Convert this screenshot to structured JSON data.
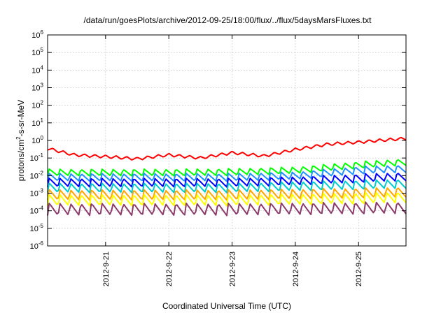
{
  "chart_data": {
    "type": "line",
    "title": "/data/run/goesPlots/archive/2012-09-25/18:00/flux/../flux/5daysMarsFluxes.txt",
    "xlabel": "Coordinated Universal Time (UTC)",
    "ylabel_parts": [
      "protons/cm",
      "2",
      "-s-sr-MeV"
    ],
    "x_range": [
      "2012-09-20T02:00",
      "2012-09-25T18:00"
    ],
    "x_ticks": [
      "2012-9-21",
      "2012-9-22",
      "2012-9-23",
      "2012-9-24",
      "2012-9-25"
    ],
    "y_scale": "log",
    "ylim": [
      1e-06,
      1000000.0
    ],
    "y_ticks": [
      {
        "base": "10",
        "exp": "6"
      },
      {
        "base": "10",
        "exp": "5"
      },
      {
        "base": "10",
        "exp": "4"
      },
      {
        "base": "10",
        "exp": "3"
      },
      {
        "base": "10",
        "exp": "2"
      },
      {
        "base": "10",
        "exp": "1"
      },
      {
        "base": "10",
        "exp": "0"
      },
      {
        "base": "10",
        "exp": "-1"
      },
      {
        "base": "10",
        "exp": "-2"
      },
      {
        "base": "10",
        "exp": "-3"
      },
      {
        "base": "10",
        "exp": "-4"
      },
      {
        "base": "10",
        "exp": "-5"
      },
      {
        "base": "10",
        "exp": "-6"
      }
    ],
    "grid": true,
    "legend": "none",
    "series": [
      {
        "color": "#ff0000",
        "x": [
          "2012-09-20T02:00",
          "2012-09-20T12:00",
          "2012-09-21T00:00",
          "2012-09-21T12:00",
          "2012-09-22T00:00",
          "2012-09-22T12:00",
          "2012-09-23T00:00",
          "2012-09-23T12:00",
          "2012-09-24T00:00",
          "2012-09-24T12:00",
          "2012-09-25T00:00",
          "2012-09-25T18:00"
        ],
        "values": [
          0.35,
          0.15,
          0.12,
          0.09,
          0.15,
          0.1,
          0.2,
          0.13,
          0.3,
          0.6,
          0.8,
          1.3
        ]
      },
      {
        "color": "#00ff00",
        "x": [
          "2012-09-20T02:00",
          "2012-09-21T00:00",
          "2012-09-22T00:00",
          "2012-09-23T00:00",
          "2012-09-24T00:00",
          "2012-09-25T00:00",
          "2012-09-25T18:00"
        ],
        "values": [
          0.015,
          0.015,
          0.015,
          0.016,
          0.02,
          0.04,
          0.06
        ]
      },
      {
        "color": "#1e90ff",
        "x": [
          "2012-09-20T02:00",
          "2012-09-21T00:00",
          "2012-09-22T00:00",
          "2012-09-23T00:00",
          "2012-09-24T00:00",
          "2012-09-25T00:00",
          "2012-09-25T18:00"
        ],
        "values": [
          0.008,
          0.008,
          0.008,
          0.008,
          0.01,
          0.02,
          0.025
        ]
      },
      {
        "color": "#0000ff",
        "x": [
          "2012-09-20T02:00",
          "2012-09-21T00:00",
          "2012-09-22T00:00",
          "2012-09-23T00:00",
          "2012-09-24T00:00",
          "2012-09-25T00:00",
          "2012-09-25T18:00"
        ],
        "values": [
          0.004,
          0.004,
          0.004,
          0.004,
          0.005,
          0.007,
          0.009
        ]
      },
      {
        "color": "#00cccc",
        "x": [
          "2012-09-20T02:00",
          "2012-09-21T00:00",
          "2012-09-22T00:00",
          "2012-09-23T00:00",
          "2012-09-24T00:00",
          "2012-09-25T00:00",
          "2012-09-25T18:00"
        ],
        "values": [
          0.002,
          0.002,
          0.002,
          0.002,
          0.0025,
          0.003,
          0.0035
        ]
      },
      {
        "color": "#ffa500",
        "x": [
          "2012-09-20T02:00",
          "2012-09-21T00:00",
          "2012-09-22T00:00",
          "2012-09-23T00:00",
          "2012-09-24T00:00",
          "2012-09-25T00:00",
          "2012-09-25T18:00"
        ],
        "values": [
          0.0008,
          0.0008,
          0.0008,
          0.0008,
          0.0009,
          0.001,
          0.0012
        ]
      },
      {
        "color": "#ffff00",
        "x": [
          "2012-09-20T02:00",
          "2012-09-21T00:00",
          "2012-09-22T00:00",
          "2012-09-23T00:00",
          "2012-09-24T00:00",
          "2012-09-25T00:00",
          "2012-09-25T18:00"
        ],
        "values": [
          0.0004,
          0.0004,
          0.0004,
          0.0004,
          0.00045,
          0.0005,
          0.0006
        ]
      },
      {
        "color": "#8b3a6b",
        "x": [
          "2012-09-20T02:00",
          "2012-09-21T00:00",
          "2012-09-22T00:00",
          "2012-09-23T00:00",
          "2012-09-24T00:00",
          "2012-09-25T00:00",
          "2012-09-25T18:00"
        ],
        "values": [
          0.00012,
          0.00012,
          0.00012,
          0.00012,
          0.00013,
          0.00014,
          0.00015
        ]
      }
    ]
  }
}
